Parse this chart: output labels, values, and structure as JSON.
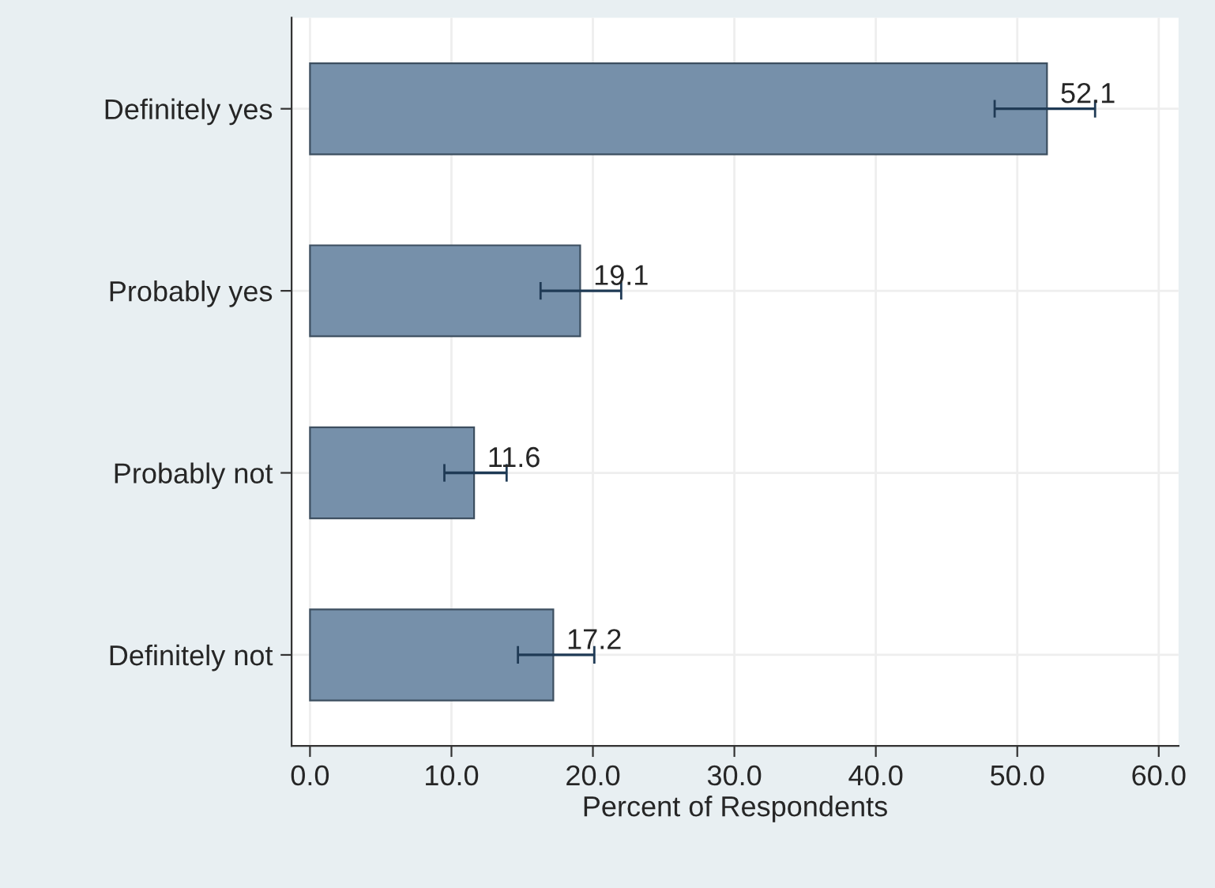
{
  "chart_data": {
    "type": "bar",
    "orientation": "horizontal",
    "xlabel": "Percent of Respondents",
    "categories": [
      "Definitely yes",
      "Probably yes",
      "Probably not",
      "Definitely not"
    ],
    "values": [
      52.1,
      19.1,
      11.6,
      17.2
    ],
    "errors": [
      [
        48.4,
        55.5
      ],
      [
        16.3,
        22.0
      ],
      [
        9.5,
        13.9
      ],
      [
        14.7,
        20.1
      ]
    ],
    "color": "#7690aa",
    "data_labels": true,
    "grid": true,
    "xlim": [
      -1.3,
      61.4
    ],
    "xticks": [
      {
        "value": 0,
        "label": "0.0"
      },
      {
        "value": 10,
        "label": "10.0"
      },
      {
        "value": 20,
        "label": "20.0"
      },
      {
        "value": 30,
        "label": "30.0"
      },
      {
        "value": 40,
        "label": "40.0"
      },
      {
        "value": 50,
        "label": "50.0"
      },
      {
        "value": 60,
        "label": "60.0"
      }
    ]
  }
}
